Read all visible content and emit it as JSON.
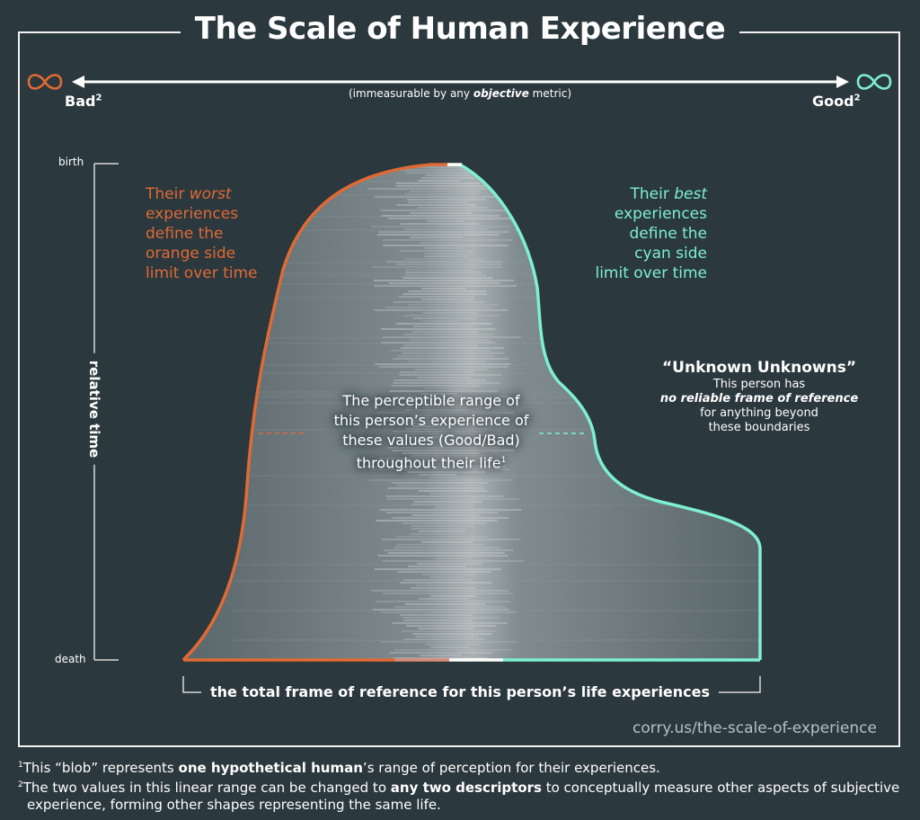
{
  "title": "The Scale of Human Experience",
  "scale": {
    "left_symbol": "∞",
    "right_symbol": "∞",
    "bad_label": "Bad",
    "good_label": "Good",
    "superscript": "2",
    "subtitle_pre": "(immeasurable by any ",
    "subtitle_em": "objective",
    "subtitle_post": " metric)"
  },
  "axis": {
    "top_label": "birth",
    "bottom_label": "death",
    "vertical_label": "relative time",
    "bottom_caption": "the total frame of reference for this person’s life experiences"
  },
  "annotations": {
    "worst_lines": [
      "Their ",
      "worst",
      " experiences",
      "define the",
      "orange side",
      "limit over time"
    ],
    "best_lines": [
      "Their ",
      "best",
      " experiences",
      "define the",
      "cyan side",
      "limit over time"
    ],
    "unknown_title": "“Unknown Unknowns”",
    "unknown_line1": "This person has",
    "unknown_bold": "no reliable frame of reference",
    "unknown_line3": "for anything beyond",
    "unknown_line4": "these boundaries",
    "perceptible_lines": [
      "The perceptible range of",
      "this  person’s experience of",
      "these values (Good/Bad)",
      "throughout their life"
    ],
    "perceptible_sup": "1"
  },
  "source": "corry.us/the-scale-of-experience",
  "footnotes": {
    "fn1_sup": "1",
    "fn1_pre": "This “blob” represents ",
    "fn1_bold": "one hypothetical human",
    "fn1_post": "’s range of perception for their experiences.",
    "fn2_sup": "2",
    "fn2_pre": "The two values in this linear range can be changed to ",
    "fn2_bold": "any two descriptors",
    "fn2_post": " to conceptually measure other aspects of subjective experience, forming other shapes representing the same life."
  },
  "colors": {
    "background": "#2b383d",
    "bad": "#e06a36",
    "good": "#7df0d2",
    "blob": "#7c8a8e"
  }
}
